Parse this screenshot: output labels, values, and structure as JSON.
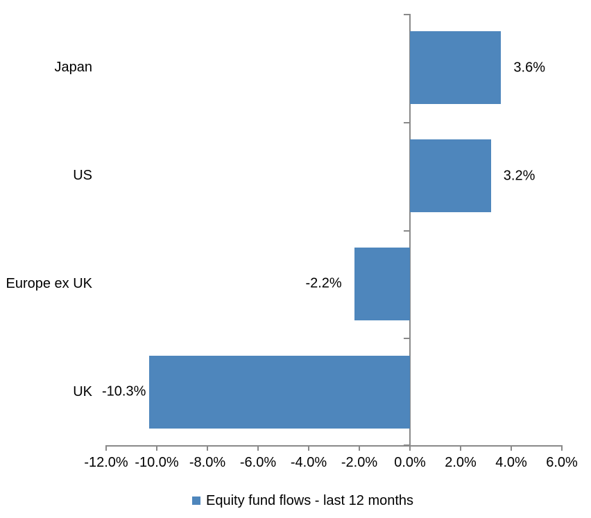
{
  "chart_data": {
    "type": "bar",
    "orientation": "horizontal",
    "title": "",
    "categories": [
      "Japan",
      "US",
      "Europe ex UK",
      "UK"
    ],
    "values": [
      3.6,
      3.2,
      -2.2,
      -10.3
    ],
    "value_labels": [
      "3.6%",
      "3.2%",
      "-2.2%",
      "-10.3%"
    ],
    "value_label_position": "outside-end",
    "xlim": [
      -12,
      6
    ],
    "x_tick_values": [
      -12,
      -10,
      -8,
      -6,
      -4,
      -2,
      0,
      2,
      4,
      6
    ],
    "x_tick_labels": [
      "-12.0%",
      "-10.0%",
      "-8.0%",
      "-6.0%",
      "-4.0%",
      "-2.0%",
      "0.0%",
      "2.0%",
      "4.0%",
      "6.0%"
    ],
    "grid": false,
    "legend": {
      "label": "Equity fund flows - last 12 months",
      "position": "bottom-center"
    },
    "colors": {
      "bar": "#4e86bc",
      "axis": "#898989",
      "text": "#000000",
      "background": "#ffffff"
    }
  }
}
